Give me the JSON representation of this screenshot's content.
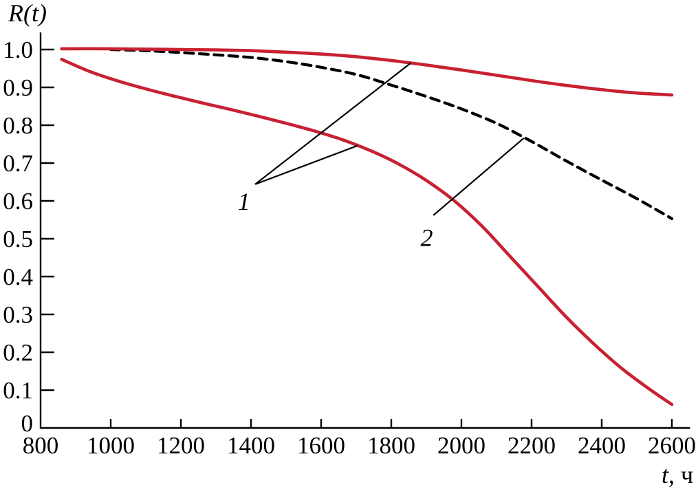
{
  "figure": {
    "background": "#ffffff",
    "ink_color": "#000000",
    "accent_red": "#c82132"
  },
  "chart_data": {
    "type": "line",
    "title": "",
    "ylabel": {
      "italic_part": "R(t)",
      "regular_part": ""
    },
    "xlabel": {
      "italic_part": "t",
      "regular_part": ", ч"
    },
    "xlim": [
      800,
      2652
    ],
    "ylim": [
      0,
      1.0449
    ],
    "grid": false,
    "legend": "none",
    "x_tick_marks": [
      1000,
      1200,
      1400,
      1600,
      1800,
      2000,
      2200,
      2400,
      2600
    ],
    "x_tick_labels": [
      {
        "v": 800,
        "label": "800"
      },
      {
        "v": 1000,
        "label": "1000"
      },
      {
        "v": 1200,
        "label": "1200"
      },
      {
        "v": 1400,
        "label": "1400"
      },
      {
        "v": 1600,
        "label": "1600"
      },
      {
        "v": 1800,
        "label": "1800"
      },
      {
        "v": 2000,
        "label": "2000"
      },
      {
        "v": 2200,
        "label": "2200"
      },
      {
        "v": 2400,
        "label": "2400"
      },
      {
        "v": 2600,
        "label": "2600"
      }
    ],
    "y_tick_marks": [
      0.1,
      0.2,
      0.3,
      0.4,
      0.5,
      0.6,
      0.7,
      0.8,
      0.9,
      1.0
    ],
    "y_tick_labels": [
      {
        "v": 1.0,
        "label": "1.0"
      },
      {
        "v": 0.9,
        "label": "0.9"
      },
      {
        "v": 0.8,
        "label": "0.8"
      },
      {
        "v": 0.7,
        "label": "0.7"
      },
      {
        "v": 0.6,
        "label": "0.6"
      },
      {
        "v": 0.5,
        "label": "0.5"
      },
      {
        "v": 0.4,
        "label": "0.4"
      },
      {
        "v": 0.3,
        "label": "0.3"
      },
      {
        "v": 0.2,
        "label": "0.2"
      },
      {
        "v": 0.1,
        "label": "0.1"
      },
      {
        "v": 0,
        "label": "0"
      }
    ],
    "series": [
      {
        "id": "upper-bound-curve",
        "callout": "1",
        "color": "#c82132",
        "style": "solid",
        "width": 4.6,
        "points": [
          [
            860,
            1.002
          ],
          [
            1000,
            1.002
          ],
          [
            1100,
            1.001
          ],
          [
            1200,
            1.0
          ],
          [
            1300,
            0.999
          ],
          [
            1400,
            0.997
          ],
          [
            1500,
            0.993
          ],
          [
            1600,
            0.988
          ],
          [
            1700,
            0.981
          ],
          [
            1800,
            0.971
          ],
          [
            1900,
            0.959
          ],
          [
            2000,
            0.946
          ],
          [
            2100,
            0.932
          ],
          [
            2200,
            0.918
          ],
          [
            2300,
            0.905
          ],
          [
            2400,
            0.894
          ],
          [
            2500,
            0.885
          ],
          [
            2600,
            0.88
          ]
        ]
      },
      {
        "id": "lower-bound-curve",
        "callout": "1",
        "color": "#c82132",
        "style": "solid",
        "width": 4.6,
        "points": [
          [
            860,
            0.974
          ],
          [
            940,
            0.942
          ],
          [
            1020,
            0.917
          ],
          [
            1100,
            0.896
          ],
          [
            1180,
            0.877
          ],
          [
            1260,
            0.859
          ],
          [
            1340,
            0.842
          ],
          [
            1420,
            0.824
          ],
          [
            1500,
            0.805
          ],
          [
            1580,
            0.785
          ],
          [
            1660,
            0.762
          ],
          [
            1740,
            0.733
          ],
          [
            1820,
            0.698
          ],
          [
            1900,
            0.654
          ],
          [
            1980,
            0.6
          ],
          [
            2060,
            0.532
          ],
          [
            2140,
            0.452
          ],
          [
            2220,
            0.372
          ],
          [
            2300,
            0.292
          ],
          [
            2380,
            0.22
          ],
          [
            2460,
            0.155
          ],
          [
            2540,
            0.1
          ],
          [
            2600,
            0.062
          ]
        ]
      },
      {
        "id": "dashed-estimate-curve",
        "callout": "2",
        "color": "#000000",
        "style": "dashed",
        "width": 4.2,
        "dash_pattern": "13 8.5",
        "points": [
          [
            1000,
            1.0
          ],
          [
            1100,
            0.997
          ],
          [
            1200,
            0.992
          ],
          [
            1300,
            0.986
          ],
          [
            1400,
            0.979
          ],
          [
            1500,
            0.968
          ],
          [
            1600,
            0.953
          ],
          [
            1700,
            0.934
          ],
          [
            1800,
            0.906
          ],
          [
            1900,
            0.876
          ],
          [
            2000,
            0.843
          ],
          [
            2100,
            0.805
          ],
          [
            2200,
            0.757
          ],
          [
            2300,
            0.705
          ],
          [
            2400,
            0.655
          ],
          [
            2500,
            0.606
          ],
          [
            2600,
            0.553
          ]
        ]
      }
    ],
    "annotations": [
      {
        "text": "1",
        "points_to": [
          "upper-bound-curve",
          "lower-bound-curve"
        ],
        "text_pos": [
          1380,
          0.598
        ],
        "vertex": [
          1412,
          0.644
        ],
        "targets": [
          [
            1855,
            0.964
          ],
          [
            1704,
            0.746
          ]
        ]
      },
      {
        "text": "2",
        "points_to": [
          "dashed-estimate-curve"
        ],
        "text_pos": [
          1901,
          0.503
        ],
        "vertex": [
          1920,
          0.562
        ],
        "targets": [
          [
            2178,
            0.766
          ]
        ]
      }
    ]
  }
}
